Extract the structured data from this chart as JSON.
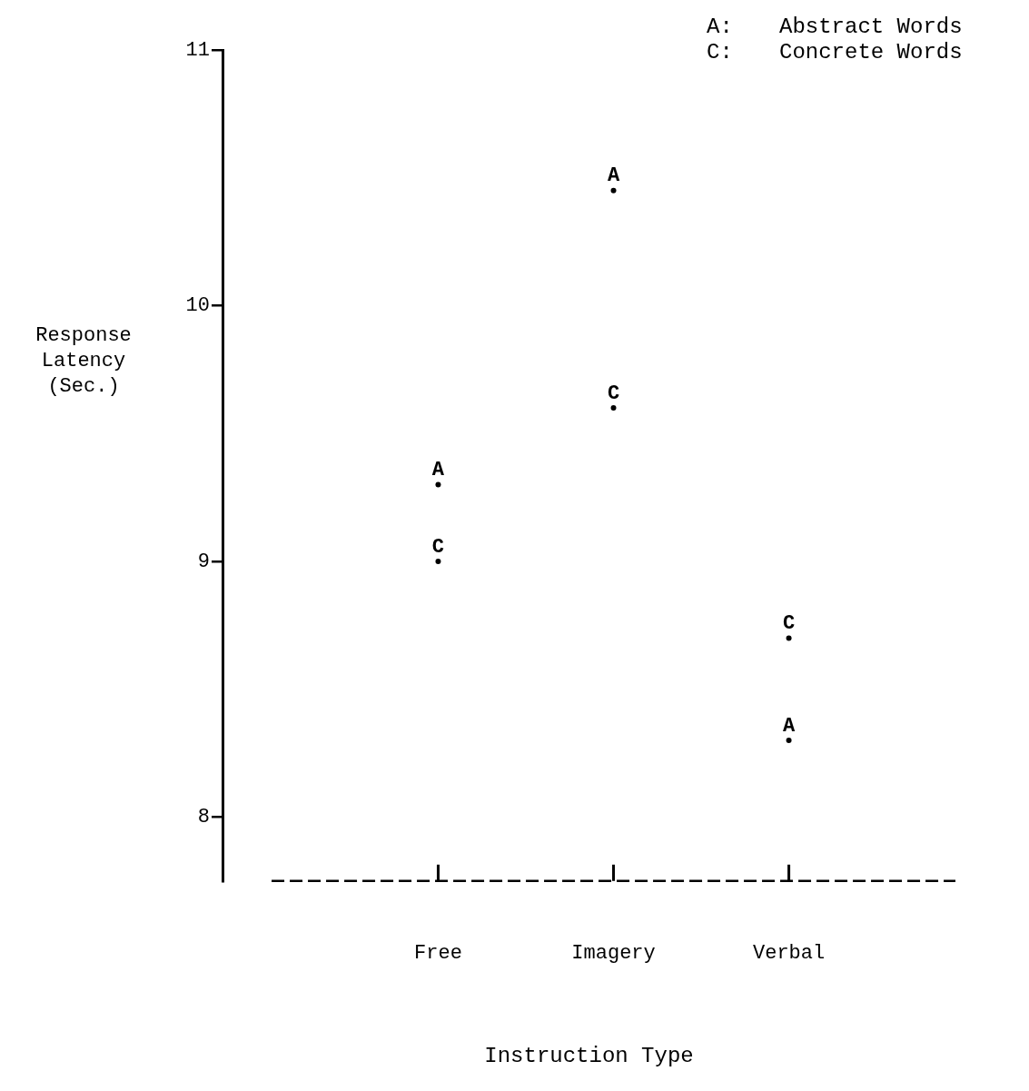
{
  "chart_data": {
    "type": "scatter",
    "xlabel": "Instruction Type",
    "ylabel": "Response Latency (Sec.)",
    "categories": [
      "Free",
      "Imagery",
      "Verbal"
    ],
    "series": [
      {
        "name": "A: Abstract Words",
        "color": "#000000",
        "values": [
          9.3,
          10.45,
          8.3
        ],
        "value_labels": [
          "A",
          "A",
          "A"
        ]
      },
      {
        "name": "C: Concrete Words",
        "color": "#000000",
        "values": [
          9.0,
          9.6,
          8.7
        ],
        "value_labels": [
          "C",
          "C",
          "C"
        ]
      }
    ],
    "ylim": [
      7.75,
      11
    ],
    "yticks": [
      8,
      9,
      10,
      11
    ]
  }
}
